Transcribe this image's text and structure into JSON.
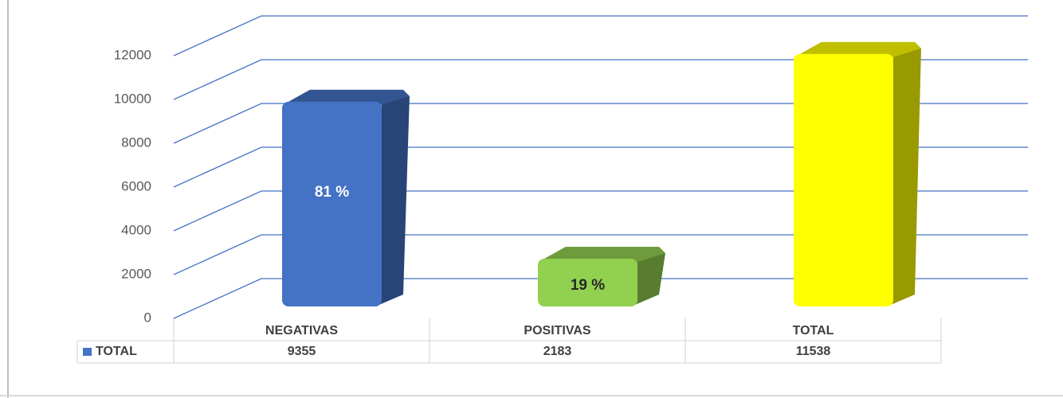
{
  "chart_data": {
    "type": "bar3d",
    "categories": [
      "NEGATIVAS",
      "POSITIVAS",
      "TOTAL"
    ],
    "series": [
      {
        "name": "TOTAL",
        "color": "#4472c4",
        "values": [
          9355,
          2183,
          11538
        ]
      }
    ],
    "colors": [
      "#4472c4",
      "#92d050",
      "#ffff00"
    ],
    "bar_labels": [
      "81 %",
      "19 %",
      null
    ],
    "ylim": [
      0,
      12000
    ],
    "yticks": [
      0,
      2000,
      4000,
      6000,
      8000,
      10000,
      12000
    ],
    "grid": true
  }
}
